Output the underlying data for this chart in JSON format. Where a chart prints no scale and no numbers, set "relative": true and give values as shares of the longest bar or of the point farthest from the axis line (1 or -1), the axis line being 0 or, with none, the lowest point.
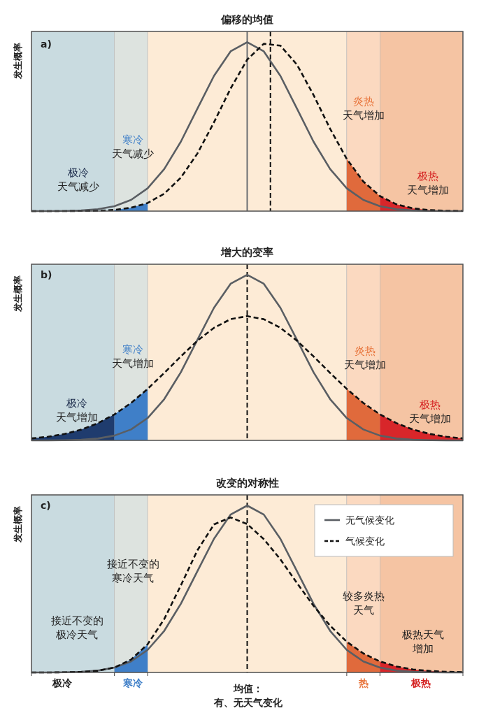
{
  "chart_data": [
    {
      "type": "line",
      "title": "偏移的均值",
      "ylabel": "发生概率",
      "relative": true,
      "categories": [
        null,
        null,
        null,
        null,
        null,
        null,
        null,
        null,
        null,
        null,
        null,
        null,
        null,
        null,
        null,
        null,
        null,
        null,
        null,
        null,
        null,
        null,
        null,
        null,
        null,
        null,
        null
      ],
      "series": [
        {
          "type": "area",
          "color": "#3f7fc8",
          "values": [
            null,
            null,
            null,
            null,
            null,
            0.007,
            0.02,
            0.048,
            null,
            null,
            null,
            null,
            null,
            null,
            null,
            null,
            null,
            null,
            null,
            null,
            null,
            null,
            null,
            null,
            null,
            null,
            null
          ]
        },
        {
          "type": "area",
          "color": "#e06a3c",
          "values": [
            null,
            null,
            null,
            null,
            null,
            null,
            null,
            null,
            null,
            null,
            null,
            null,
            null,
            null,
            null,
            null,
            null,
            null,
            null,
            0.309,
            0.175,
            0.089,
            null,
            null,
            null,
            null,
            null
          ]
        },
        {
          "type": "area",
          "color": "#d8262a",
          "values": [
            null,
            null,
            null,
            null,
            null,
            null,
            null,
            null,
            null,
            null,
            null,
            null,
            null,
            null,
            null,
            null,
            null,
            null,
            null,
            null,
            null,
            0.089,
            0.04,
            0.016,
            0.006,
            0.002,
            0.001
          ]
        },
        {
          "color": "#5a5e63",
          "line_style": "solid",
          "values": [
            0,
            0,
            0.001,
            0.004,
            0.011,
            0.029,
            0.066,
            0.135,
            0.249,
            0.411,
            0.607,
            0.801,
            0.946,
            1,
            0.946,
            0.801,
            0.607,
            0.411,
            0.249,
            0.135,
            0.066,
            0.029,
            0.011,
            0.004,
            0.001,
            0,
            0
          ]
        },
        {
          "color": "#111111",
          "line_style": "dashed",
          "values": [
            0,
            0,
            0,
            0.001,
            0.002,
            0.007,
            0.02,
            0.048,
            0.103,
            0.198,
            0.341,
            0.526,
            0.726,
            0.897,
            0.991,
            0.98,
            0.867,
            0.687,
            0.487,
            0.309,
            0.175,
            0.089,
            0.04,
            0.016,
            0.006,
            0.002,
            0.001
          ]
        }
      ],
      "annotations": [
        "a)",
        "极冷天气减少",
        "寒冷天气减少",
        "炎热天气增加",
        "极热天气增加"
      ]
    },
    {
      "type": "line",
      "title": "增大的变率",
      "ylabel": "发生概率",
      "relative": true,
      "categories": [
        null,
        null,
        null,
        null,
        null,
        null,
        null,
        null,
        null,
        null,
        null,
        null,
        null,
        null,
        null,
        null,
        null,
        null,
        null,
        null,
        null,
        null,
        null,
        null,
        null,
        null,
        null
      ],
      "series": [
        {
          "type": "area",
          "color": "#1f3c6e",
          "values": [
            0.012,
            0.022,
            0.039,
            0.065,
            0.104,
            0.157,
            null,
            null,
            null,
            null,
            null,
            null,
            null,
            null,
            null,
            null,
            null,
            null,
            null,
            null,
            null,
            null,
            null,
            null,
            null,
            null,
            null
          ]
        },
        {
          "type": "area",
          "color": "#3f7fc8",
          "values": [
            null,
            null,
            null,
            null,
            null,
            0.157,
            0.226,
            0.311,
            null,
            null,
            null,
            null,
            null,
            null,
            null,
            null,
            null,
            null,
            null,
            null,
            null,
            null,
            null,
            null,
            null,
            null,
            null
          ]
        },
        {
          "type": "area",
          "color": "#e06a3c",
          "values": [
            null,
            null,
            null,
            null,
            null,
            null,
            null,
            null,
            null,
            null,
            null,
            null,
            null,
            null,
            null,
            null,
            null,
            null,
            null,
            0.311,
            0.226,
            0.157,
            null,
            null,
            null,
            null,
            null
          ]
        },
        {
          "type": "area",
          "color": "#d8262a",
          "values": [
            null,
            null,
            null,
            null,
            null,
            null,
            null,
            null,
            null,
            null,
            null,
            null,
            null,
            null,
            null,
            null,
            null,
            null,
            null,
            null,
            null,
            0.157,
            0.104,
            0.065,
            0.039,
            0.022,
            0.012
          ]
        },
        {
          "color": "#5a5e63",
          "line_style": "solid",
          "values": [
            0,
            0,
            0.001,
            0.004,
            0.011,
            0.029,
            0.066,
            0.135,
            0.249,
            0.411,
            0.607,
            0.801,
            0.946,
            1,
            0.946,
            0.801,
            0.607,
            0.411,
            0.249,
            0.135,
            0.066,
            0.029,
            0.011,
            0.004,
            0.001,
            0,
            0
          ]
        },
        {
          "color": "#111111",
          "line_style": "dashed",
          "values": [
            0.012,
            0.022,
            0.039,
            0.065,
            0.104,
            0.157,
            0.226,
            0.311,
            0.407,
            0.507,
            0.602,
            0.68,
            0.732,
            0.75,
            0.732,
            0.68,
            0.602,
            0.507,
            0.407,
            0.311,
            0.226,
            0.157,
            0.104,
            0.065,
            0.039,
            0.022,
            0.012
          ]
        }
      ],
      "annotations": [
        "b)",
        "极冷天气增加",
        "寒冷天气增加",
        "炎热天气增加",
        "极热天气增加"
      ]
    },
    {
      "type": "line",
      "title": "改变的对称性",
      "ylabel": "发生概率",
      "relative": true,
      "legend": "top right",
      "categories": [
        null,
        null,
        null,
        null,
        null,
        null,
        null,
        null,
        null,
        null,
        null,
        null,
        null,
        null,
        null,
        null,
        null,
        null,
        null,
        null,
        null,
        null,
        null,
        null,
        null,
        null,
        null
      ],
      "series": [
        {
          "type": "area",
          "color": "#3f7fc8",
          "values": [
            null,
            null,
            null,
            null,
            null,
            0.03,
            0.077,
            0.169,
            null,
            null,
            null,
            null,
            null,
            null,
            null,
            null,
            null,
            null,
            null,
            null,
            null,
            null,
            null,
            null,
            null,
            null,
            null
          ]
        },
        {
          "type": "area",
          "color": "#e06a3c",
          "values": [
            null,
            null,
            null,
            null,
            null,
            null,
            null,
            null,
            null,
            null,
            null,
            null,
            null,
            null,
            null,
            null,
            null,
            null,
            null,
            0.184,
            0.114,
            0.066,
            null,
            null,
            null,
            null,
            null
          ]
        },
        {
          "type": "area",
          "color": "#d8262a",
          "values": [
            null,
            null,
            null,
            null,
            null,
            null,
            null,
            null,
            null,
            null,
            null,
            null,
            null,
            null,
            null,
            null,
            null,
            null,
            null,
            null,
            null,
            0.066,
            0.036,
            0.018,
            0.009,
            0.004,
            0.002
          ]
        },
        {
          "name": "无气候变化",
          "color": "#5a5e63",
          "line_style": "solid",
          "values": [
            0,
            0,
            0.001,
            0.004,
            0.011,
            0.029,
            0.066,
            0.135,
            0.249,
            0.411,
            0.607,
            0.801,
            0.946,
            1,
            0.946,
            0.801,
            0.607,
            0.411,
            0.249,
            0.135,
            0.066,
            0.029,
            0.011,
            0.004,
            0.001,
            0,
            0
          ]
        },
        {
          "name": "气候变化",
          "color": "#111111",
          "line_style": "dashed",
          "values": [
            0,
            0,
            0.001,
            0.003,
            0.01,
            0.03,
            0.077,
            0.169,
            0.32,
            0.521,
            0.732,
            0.887,
            0.929,
            0.889,
            0.799,
            0.678,
            0.536,
            0.399,
            0.28,
            0.184,
            0.114,
            0.066,
            0.036,
            0.018,
            0.009,
            0.004,
            0.002
          ]
        }
      ],
      "annotations": [
        "c)",
        "接近不变的寒冷天气",
        "较多炎热天气",
        "接近不变的极冷天气",
        "极热天气增加",
        "极冷",
        "寒冷",
        "热",
        "极热",
        "均值：有、无天气变化"
      ]
    }
  ]
}
